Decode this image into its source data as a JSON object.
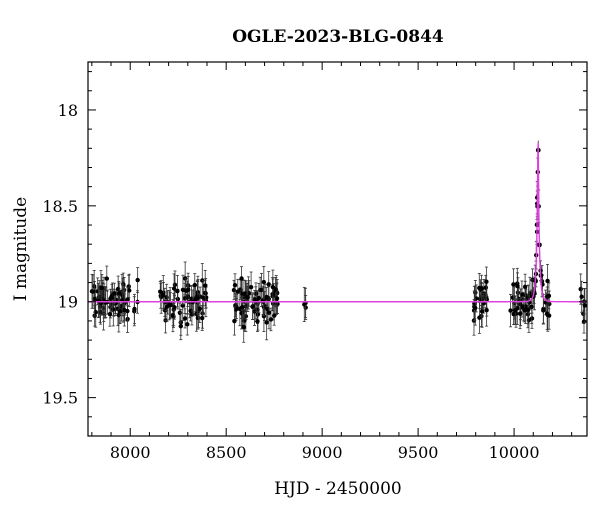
{
  "chart_data": {
    "type": "scatter",
    "title": "OGLE-2023-BLG-0844",
    "xlabel": "HJD - 2450000",
    "ylabel": "I magnitude",
    "xlim": [
      7780,
      10380
    ],
    "ylim": [
      19.7,
      17.75
    ],
    "y_inverted": true,
    "x_ticks": [
      8000,
      8500,
      9000,
      9500,
      10000
    ],
    "y_ticks": [
      18,
      18.5,
      19,
      19.5
    ],
    "grid": false,
    "legend": "none",
    "colors": {
      "points": "#000000",
      "errorbars": "#333333",
      "model": "#e040e0"
    },
    "series": [
      {
        "kind": "observations",
        "seasons": [
          {
            "x_start": 7790,
            "x_end": 8045,
            "count": 70
          },
          {
            "x_start": 8155,
            "x_end": 8400,
            "count": 65
          },
          {
            "x_start": 8540,
            "x_end": 8770,
            "count": 75
          },
          {
            "x_start": 8905,
            "x_end": 8915,
            "count": 3
          },
          {
            "x_start": 9790,
            "x_end": 9860,
            "count": 25
          },
          {
            "x_start": 9980,
            "x_end": 10190,
            "count": 60
          },
          {
            "x_start": 10340,
            "x_end": 10380,
            "count": 6
          }
        ],
        "baseline_mag": 19.0,
        "scatter_mag": 0.05,
        "typical_error": 0.07
      },
      {
        "kind": "model",
        "baseline_mag": 19.0,
        "peak_time": 10125,
        "peak_mag": 18.15,
        "tE_days": 14
      }
    ]
  }
}
